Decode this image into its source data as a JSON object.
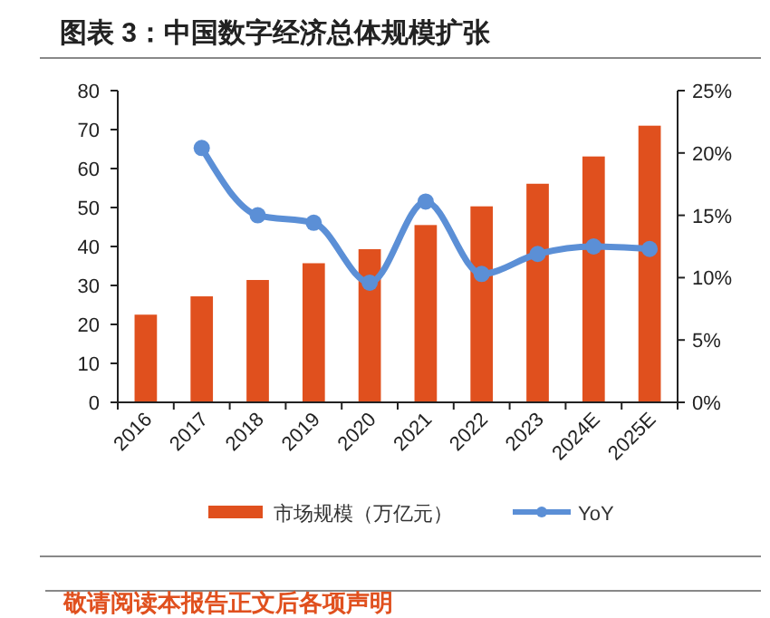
{
  "chart_data": {
    "type": "bar",
    "title": "图表 3：中国数字经济总体规模扩张",
    "categories": [
      "2016",
      "2017",
      "2018",
      "2019",
      "2020",
      "2021",
      "2022",
      "2023",
      "2024E",
      "2025E"
    ],
    "series": [
      {
        "name": "市场规模（万亿元）",
        "color": "#e0501e",
        "values": [
          22.5,
          27.2,
          31.4,
          35.7,
          39.3,
          45.5,
          50.3,
          56.1,
          63.1,
          71.0
        ]
      },
      {
        "name": "YoY",
        "type": "line",
        "axis": "y2",
        "color": "#5b8fd6",
        "marker": "circle",
        "values": [
          null,
          20.4,
          15.0,
          14.4,
          9.6,
          16.1,
          10.3,
          11.9,
          12.5,
          12.3
        ]
      }
    ],
    "ylim": [
      0,
      80
    ],
    "yticks": [
      0,
      10,
      20,
      30,
      40,
      50,
      60,
      70,
      80
    ],
    "y2lim": [
      0,
      25
    ],
    "y2ticks": [
      {
        "value": 0,
        "label": "0%"
      },
      {
        "value": 5,
        "label": "5%"
      },
      {
        "value": 10,
        "label": "10%"
      },
      {
        "value": 15,
        "label": "15%"
      },
      {
        "value": 20,
        "label": "20%"
      },
      {
        "value": 25,
        "label": "25%"
      }
    ],
    "grid": false,
    "legend": "bottom",
    "annotations": [
      "敬请阅读本报告正文后各项声明"
    ]
  }
}
